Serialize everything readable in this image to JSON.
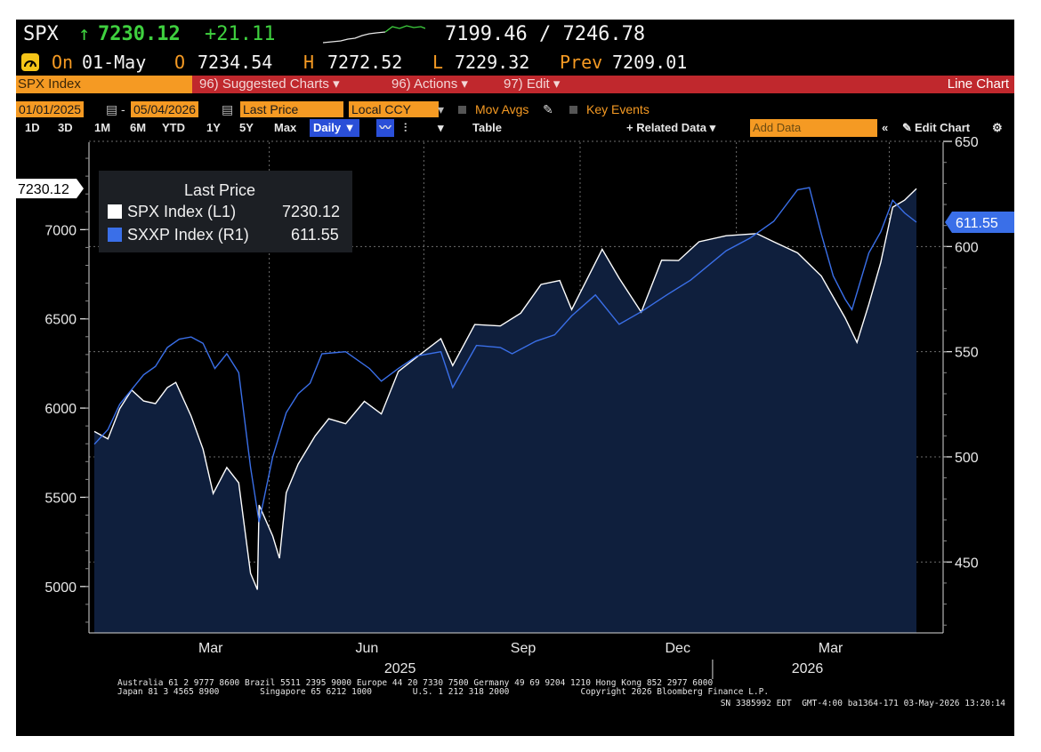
{
  "header": {
    "ticker": "SPX",
    "arrow": "↑",
    "last": "7230.12",
    "change": "+21.11",
    "range": "7199.46 / 7246.78",
    "on_label": "On",
    "date": "01-May",
    "open_label": "O",
    "open": "7234.54",
    "high_label": "H",
    "high": "7272.52",
    "low_label": "L",
    "low": "7229.32",
    "prev_label": "Prev",
    "prev": "7209.01"
  },
  "menu": {
    "security": "SPX Index",
    "suggested": "96) Suggested Charts ▾",
    "actions": "96) Actions ▾",
    "edit": "97) Edit ▾",
    "chart_type": "Line Chart"
  },
  "controls": {
    "start_date": "01/01/2025",
    "end_date": "05/04/2026",
    "field": "Last Price",
    "currency": "Local CCY",
    "mov_avgs": "Mov Avgs",
    "key_events": "Key Events"
  },
  "toolbar": {
    "periods": [
      "1D",
      "3D",
      "1M",
      "6M",
      "YTD",
      "1Y",
      "5Y",
      "Max"
    ],
    "frequency": "Daily ▼",
    "table": "Table",
    "related": "+ Related Data ▾",
    "add_data_placeholder": "Add Data",
    "collapse": "«",
    "edit_chart": "Edit Chart"
  },
  "footer": {
    "line1": "Australia 61 2 9777 8600 Brazil 5511 2395 9000 Europe 44 20 7330 7500 Germany 49 69 9204 1210 Hong Kong 852 2977 6000",
    "line2": "Japan 81 3 4565 8900        Singapore 65 6212 1000        U.S. 1 212 318 2000              Copyright 2026 Bloomberg Finance L.P.",
    "line3": "SN 3385992 EDT  GMT-4:00 ba1364-171 03-May-2026 13:20:14"
  },
  "colors": {
    "spx_line": "#ffffff",
    "sxxp_line": "#3a6fe8",
    "area_fill": "#0f1f3d",
    "header_green": "#3fd13f",
    "amber": "#f59a23",
    "menu_red": "#c0282d"
  },
  "chart_data": {
    "type": "line",
    "legend_title": "Last Price",
    "x_ticks": [
      "Mar",
      "Jun",
      "Sep",
      "Dec",
      "Mar"
    ],
    "year_labels": [
      "2025",
      "2026"
    ],
    "left_axis": {
      "ticks": [
        5000,
        5500,
        6000,
        6500,
        7000
      ],
      "ylim": [
        4740,
        7490
      ]
    },
    "right_axis": {
      "ticks": [
        450,
        500,
        550,
        600,
        650
      ],
      "ylim": [
        416.3,
        649.6
      ]
    },
    "last_value_tags": {
      "left": "7230.12",
      "right": "611.55"
    },
    "series": [
      {
        "name": "SPX Index  (L1)",
        "axis": "left",
        "last": "7230.12",
        "points": [
          [
            "2025-01-02",
            5869
          ],
          [
            "2025-01-10",
            5827
          ],
          [
            "2025-01-17",
            5997
          ],
          [
            "2025-01-24",
            6101
          ],
          [
            "2025-01-31",
            6040
          ],
          [
            "2025-02-07",
            6025
          ],
          [
            "2025-02-14",
            6115
          ],
          [
            "2025-02-19",
            6144
          ],
          [
            "2025-02-28",
            5955
          ],
          [
            "2025-03-07",
            5770
          ],
          [
            "2025-03-13",
            5521
          ],
          [
            "2025-03-21",
            5667
          ],
          [
            "2025-03-28",
            5581
          ],
          [
            "2025-04-04",
            5074
          ],
          [
            "2025-04-08",
            4982
          ],
          [
            "2025-04-09",
            5457
          ],
          [
            "2025-04-17",
            5283
          ],
          [
            "2025-04-21",
            5158
          ],
          [
            "2025-04-25",
            5525
          ],
          [
            "2025-05-02",
            5686
          ],
          [
            "2025-05-12",
            5844
          ],
          [
            "2025-05-20",
            5940
          ],
          [
            "2025-05-30",
            5912
          ],
          [
            "2025-06-10",
            6038
          ],
          [
            "2025-06-20",
            5967
          ],
          [
            "2025-06-30",
            6205
          ],
          [
            "2025-07-10",
            6280
          ],
          [
            "2025-07-25",
            6389
          ],
          [
            "2025-08-01",
            6238
          ],
          [
            "2025-08-14",
            6468
          ],
          [
            "2025-08-29",
            6460
          ],
          [
            "2025-09-10",
            6532
          ],
          [
            "2025-09-22",
            6693
          ],
          [
            "2025-10-03",
            6715
          ],
          [
            "2025-10-10",
            6552
          ],
          [
            "2025-10-28",
            6890
          ],
          [
            "2025-11-07",
            6728
          ],
          [
            "2025-11-20",
            6538
          ],
          [
            "2025-12-02",
            6829
          ],
          [
            "2025-12-12",
            6827
          ],
          [
            "2025-12-24",
            6932
          ],
          [
            "2026-01-09",
            6966
          ],
          [
            "2026-01-27",
            6978
          ],
          [
            "2026-02-06",
            6932
          ],
          [
            "2026-02-20",
            6870
          ],
          [
            "2026-03-06",
            6740
          ],
          [
            "2026-03-20",
            6506
          ],
          [
            "2026-03-27",
            6368
          ],
          [
            "2026-04-03",
            6582
          ],
          [
            "2026-04-10",
            6816
          ],
          [
            "2026-04-17",
            7126
          ],
          [
            "2026-04-24",
            7165
          ],
          [
            "2026-05-01",
            7230.12
          ]
        ]
      },
      {
        "name": "SXXP Index  (R1)",
        "axis": "right",
        "last": "611.55",
        "points": [
          [
            "2025-01-02",
            506
          ],
          [
            "2025-01-10",
            513
          ],
          [
            "2025-01-17",
            525
          ],
          [
            "2025-01-24",
            532
          ],
          [
            "2025-01-31",
            539
          ],
          [
            "2025-02-07",
            543
          ],
          [
            "2025-02-14",
            552
          ],
          [
            "2025-02-21",
            556
          ],
          [
            "2025-02-28",
            557
          ],
          [
            "2025-03-07",
            554
          ],
          [
            "2025-03-14",
            542
          ],
          [
            "2025-03-21",
            549
          ],
          [
            "2025-03-28",
            540
          ],
          [
            "2025-04-04",
            495
          ],
          [
            "2025-04-09",
            469
          ],
          [
            "2025-04-17",
            500
          ],
          [
            "2025-04-25",
            521
          ],
          [
            "2025-05-02",
            530
          ],
          [
            "2025-05-09",
            535
          ],
          [
            "2025-05-16",
            549
          ],
          [
            "2025-05-30",
            550
          ],
          [
            "2025-06-13",
            542
          ],
          [
            "2025-06-20",
            536
          ],
          [
            "2025-06-30",
            542
          ],
          [
            "2025-07-11",
            548
          ],
          [
            "2025-07-25",
            550
          ],
          [
            "2025-08-01",
            533
          ],
          [
            "2025-08-15",
            553
          ],
          [
            "2025-08-29",
            552
          ],
          [
            "2025-09-05",
            549
          ],
          [
            "2025-09-19",
            555
          ],
          [
            "2025-09-30",
            558
          ],
          [
            "2025-10-10",
            567
          ],
          [
            "2025-10-24",
            577
          ],
          [
            "2025-11-07",
            563
          ],
          [
            "2025-11-20",
            569
          ],
          [
            "2025-12-05",
            577
          ],
          [
            "2025-12-19",
            584
          ],
          [
            "2026-01-09",
            598
          ],
          [
            "2026-01-23",
            604
          ],
          [
            "2026-02-06",
            612
          ],
          [
            "2026-02-20",
            627
          ],
          [
            "2026-02-27",
            628
          ],
          [
            "2026-03-06",
            606
          ],
          [
            "2026-03-13",
            586
          ],
          [
            "2026-03-20",
            575
          ],
          [
            "2026-03-24",
            570
          ],
          [
            "2026-04-03",
            597
          ],
          [
            "2026-04-10",
            607
          ],
          [
            "2026-04-17",
            622
          ],
          [
            "2026-04-24",
            616
          ],
          [
            "2026-05-01",
            611.55
          ]
        ]
      }
    ]
  }
}
